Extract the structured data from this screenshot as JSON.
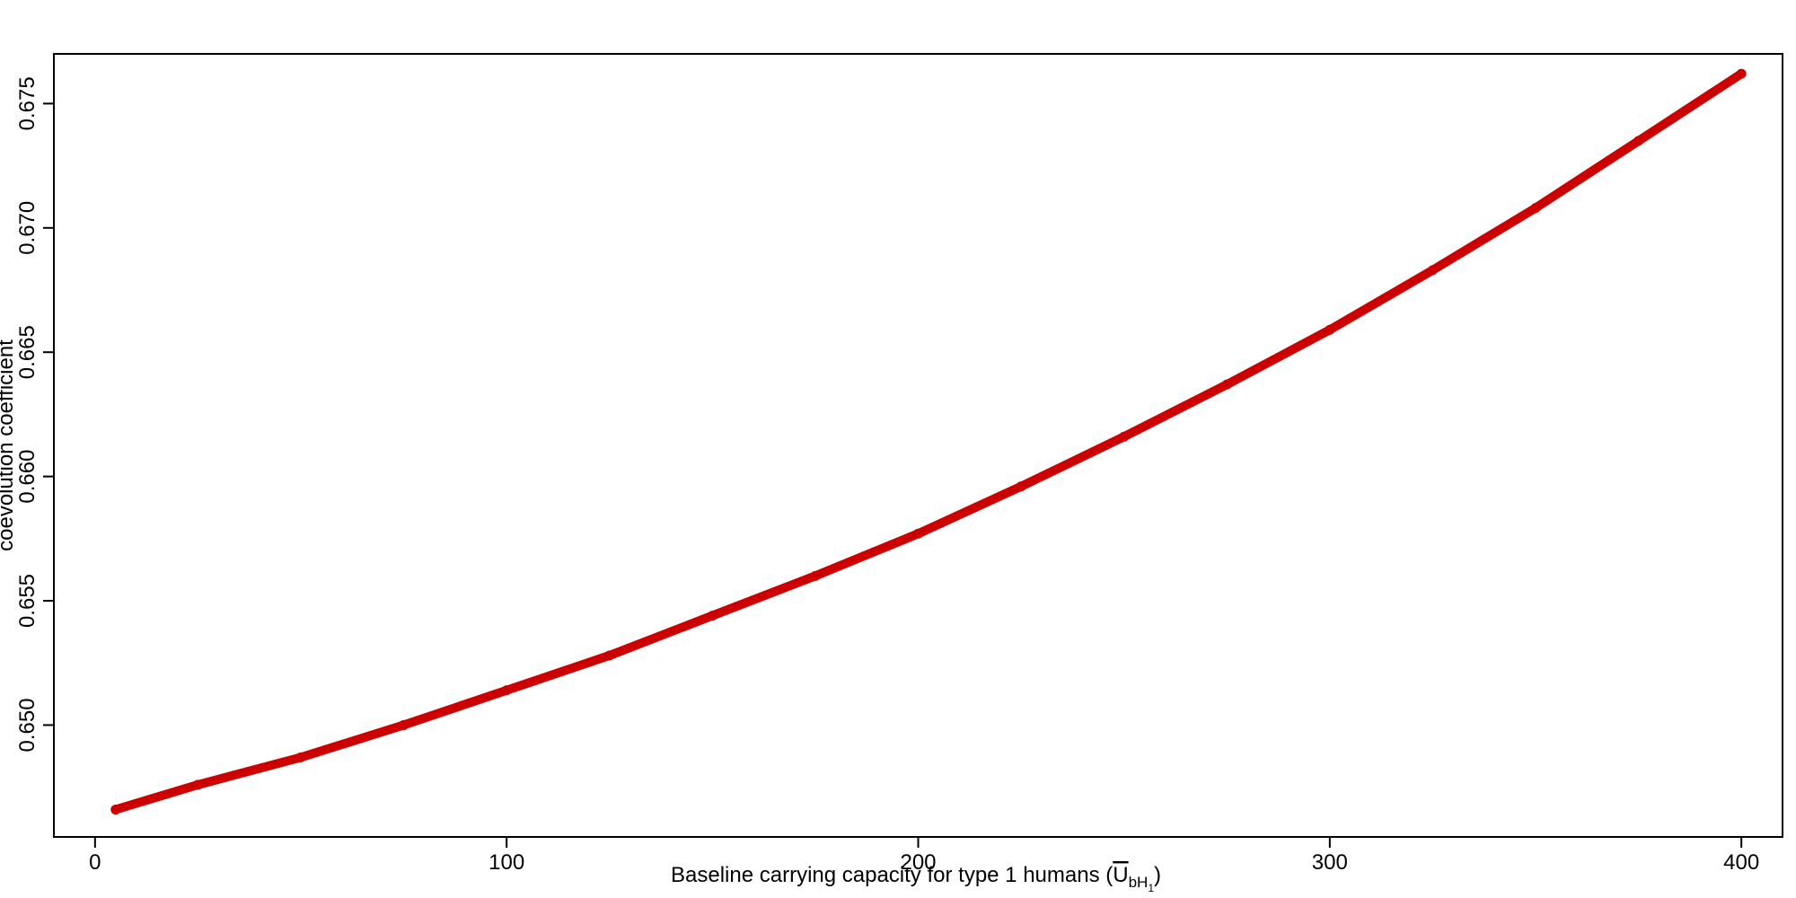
{
  "chart_data": {
    "type": "line",
    "title": "",
    "xlabel": "Baseline carrying capacity for type 1 humans (",
    "xlabel_symbol": "U",
    "xlabel_subscript": "bH",
    "xlabel_subsubscript": "1",
    "xlabel_close": ")",
    "ylabel": "coevolution coefficient",
    "xlim": [
      -10,
      410
    ],
    "ylim": [
      0.6455,
      0.677
    ],
    "x_ticks": [
      0,
      100,
      200,
      300,
      400
    ],
    "x_tick_labels": [
      "0",
      "100",
      "200",
      "300",
      "400"
    ],
    "y_ticks": [
      0.65,
      0.655,
      0.66,
      0.665,
      0.67,
      0.675
    ],
    "y_tick_labels": [
      "0.650",
      "0.655",
      "0.660",
      "0.665",
      "0.670",
      "0.675"
    ],
    "grid": false,
    "legend": "none",
    "series": [
      {
        "color": "#cc0000",
        "x": [
          5,
          25,
          50,
          75,
          100,
          125,
          150,
          175,
          200,
          225,
          250,
          275,
          300,
          325,
          350,
          375,
          400
        ],
        "y": [
          0.6466,
          0.6476,
          0.6487,
          0.65,
          0.6514,
          0.6528,
          0.6544,
          0.656,
          0.6577,
          0.6596,
          0.6616,
          0.6637,
          0.6659,
          0.6683,
          0.6708,
          0.6735,
          0.6762
        ]
      }
    ]
  }
}
